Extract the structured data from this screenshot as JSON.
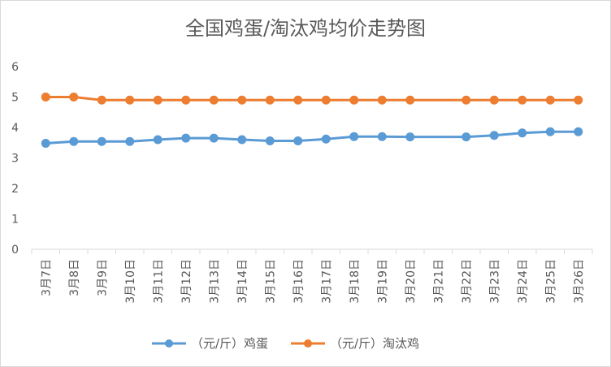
{
  "chart_data": {
    "type": "line",
    "title": "全国鸡蛋/淘汰鸡均价走势图",
    "categories": [
      "3月7日",
      "3月8日",
      "3月9日",
      "3月10日",
      "3月11日",
      "3月12日",
      "3月13日",
      "3月14日",
      "3月15日",
      "3月16日",
      "3月17日",
      "3月18日",
      "3月19日",
      "3月20日",
      "3月21日",
      "3月22日",
      "3月23日",
      "3月24日",
      "3月25日",
      "3月26日"
    ],
    "ylim": [
      0,
      6
    ],
    "yticks": [
      0,
      1,
      2,
      3,
      4,
      5,
      6
    ],
    "grid": false,
    "legend_position": "bottom",
    "series": [
      {
        "name": "（元/斤）鸡蛋",
        "color": "#5b9bd5",
        "values": [
          3.48,
          3.54,
          3.54,
          3.54,
          3.6,
          3.65,
          3.65,
          3.6,
          3.56,
          3.56,
          3.62,
          3.7,
          3.7,
          3.69,
          null,
          3.69,
          3.74,
          3.82,
          3.86,
          3.86
        ]
      },
      {
        "name": "（元/斤）淘汰鸡",
        "color": "#ed7d31",
        "values": [
          5.0,
          5.0,
          4.9,
          4.9,
          4.9,
          4.9,
          4.9,
          4.9,
          4.9,
          4.9,
          4.9,
          4.9,
          4.9,
          4.9,
          null,
          4.9,
          4.9,
          4.9,
          4.9,
          4.9
        ]
      }
    ]
  }
}
